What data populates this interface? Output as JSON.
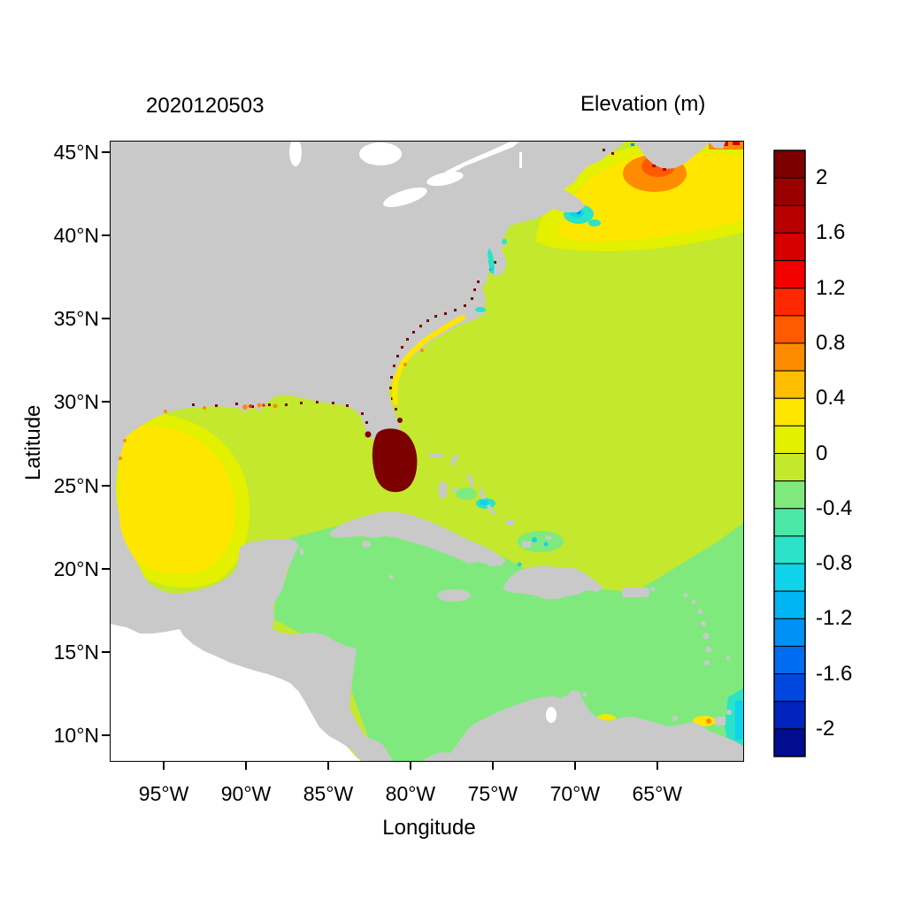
{
  "chart_data": {
    "type": "heatmap",
    "description": "Filled-contour geographic map of modeled water surface elevation over the Gulf of Mexico, Caribbean Sea and western North Atlantic",
    "titles": {
      "left": "2020120503",
      "right": "Elevation (m)"
    },
    "axes": {
      "x_label": "Longitude",
      "y_label": "Latitude",
      "x_ticks": [
        "95°W",
        "90°W",
        "85°W",
        "80°W",
        "75°W",
        "70°W",
        "65°W"
      ],
      "x_tick_values": [
        -95,
        -90,
        -85,
        -80,
        -75,
        -70,
        -65
      ],
      "y_ticks": [
        "45°N",
        "40°N",
        "35°N",
        "30°N",
        "25°N",
        "20°N",
        "15°N",
        "10°N"
      ],
      "y_tick_values": [
        45,
        40,
        35,
        30,
        25,
        20,
        15,
        10
      ],
      "lon_range": [
        -98.2,
        -59.8
      ],
      "lat_range": [
        8.5,
        45.6
      ],
      "grid": false
    },
    "colorbar": {
      "title": "Elevation (m)",
      "units": "m",
      "range": [
        -2.2,
        2.2
      ],
      "step": 0.2,
      "tick_labels": [
        "2",
        "1.6",
        "1.2",
        "0.8",
        "0.4",
        "0",
        "-0.4",
        "-0.8",
        "-1.2",
        "-1.6",
        "-2"
      ],
      "colors": [
        "#7D0000",
        "#9B0000",
        "#B90000",
        "#D60000",
        "#F20000",
        "#FF2800",
        "#FF5A00",
        "#FF8C00",
        "#FFBE00",
        "#FFE600",
        "#E3F000",
        "#C3E82D",
        "#7FE97E",
        "#4CE9A6",
        "#2AE3C8",
        "#10D3EA",
        "#00B5F2",
        "#0091F5",
        "#006CF0",
        "#0047DF",
        "#0024BD",
        "#000D8F"
      ]
    },
    "map": {
      "land_color": "#c9c9c9",
      "no_data_color": "#ffffff",
      "land_note": "gray = land, white = outside model domain (Pacific side)"
    },
    "features": [
      {
        "name": "open-atlantic",
        "lon": [
          -80,
          -60
        ],
        "lat": [
          22,
          43
        ],
        "elevation_m": [
          0.0,
          0.2
        ]
      },
      {
        "name": "eastern-gulf-of-mexico",
        "lon": [
          -90,
          -82
        ],
        "lat": [
          20,
          30
        ],
        "elevation_m": [
          0.0,
          0.2
        ]
      },
      {
        "name": "western-gulf-of-mexico",
        "lon": [
          -97.8,
          -89.5
        ],
        "lat": [
          19,
          28
        ],
        "elevation_m": [
          0.4,
          0.6
        ]
      },
      {
        "name": "caribbean-sea",
        "lon": [
          -88,
          -60
        ],
        "lat": [
          9,
          21
        ],
        "elevation_m": [
          -0.2,
          0.0
        ]
      },
      {
        "name": "south-florida-high",
        "lon": [
          -82,
          -79.8
        ],
        "lat": [
          24.8,
          27.6
        ],
        "elevation_m": [
          2.0,
          2.2
        ],
        "note": "saturated dark red, > 2 m"
      },
      {
        "name": "florida-east-coast-speckles",
        "lon": [
          -81.5,
          -80
        ],
        "lat": [
          25,
          31
        ],
        "elevation_m": [
          1.8,
          2.2
        ]
      },
      {
        "name": "northern-gulf-coast-speckles",
        "lon": [
          -94,
          -84
        ],
        "lat": [
          29,
          30.5
        ],
        "elevation_m": [
          0.6,
          2.2
        ]
      },
      {
        "name": "gulf-of-maine-bay-of-fundy",
        "lon": [
          -68,
          -63
        ],
        "lat": [
          42.5,
          45.5
        ],
        "elevation_m": [
          0.6,
          1.4
        ],
        "note": "orange maximum ringed by yellow"
      },
      {
        "name": "gulf-of-st-lawrence-corner",
        "lon": [
          -64,
          -60
        ],
        "lat": [
          45,
          45.6
        ],
        "elevation_m": [
          0.8,
          1.6
        ]
      },
      {
        "name": "nantucket-shoals-low",
        "lon": [
          -71,
          -69
        ],
        "lat": [
          40.8,
          42
        ],
        "elevation_m": [
          -0.8,
          -0.4
        ]
      },
      {
        "name": "chesapeake-delaware-bays",
        "lon": [
          -76.5,
          -75
        ],
        "lat": [
          37,
          39.5
        ],
        "elevation_m": [
          -0.6,
          -0.4
        ]
      },
      {
        "name": "bahamas-banks-spots",
        "lon": [
          -77,
          -74.5
        ],
        "lat": [
          23,
          24.5
        ],
        "elevation_m": [
          -0.8,
          -0.4
        ]
      },
      {
        "name": "venezuela-coast-spots",
        "lon": [
          -69,
          -61
        ],
        "lat": [
          10,
          11
        ],
        "elevation_m": [
          0.2,
          0.8
        ]
      },
      {
        "name": "southeast-edge-low",
        "lon": [
          -61,
          -59.8
        ],
        "lat": [
          9,
          12
        ],
        "elevation_m": [
          -0.8,
          -0.4
        ]
      }
    ]
  }
}
